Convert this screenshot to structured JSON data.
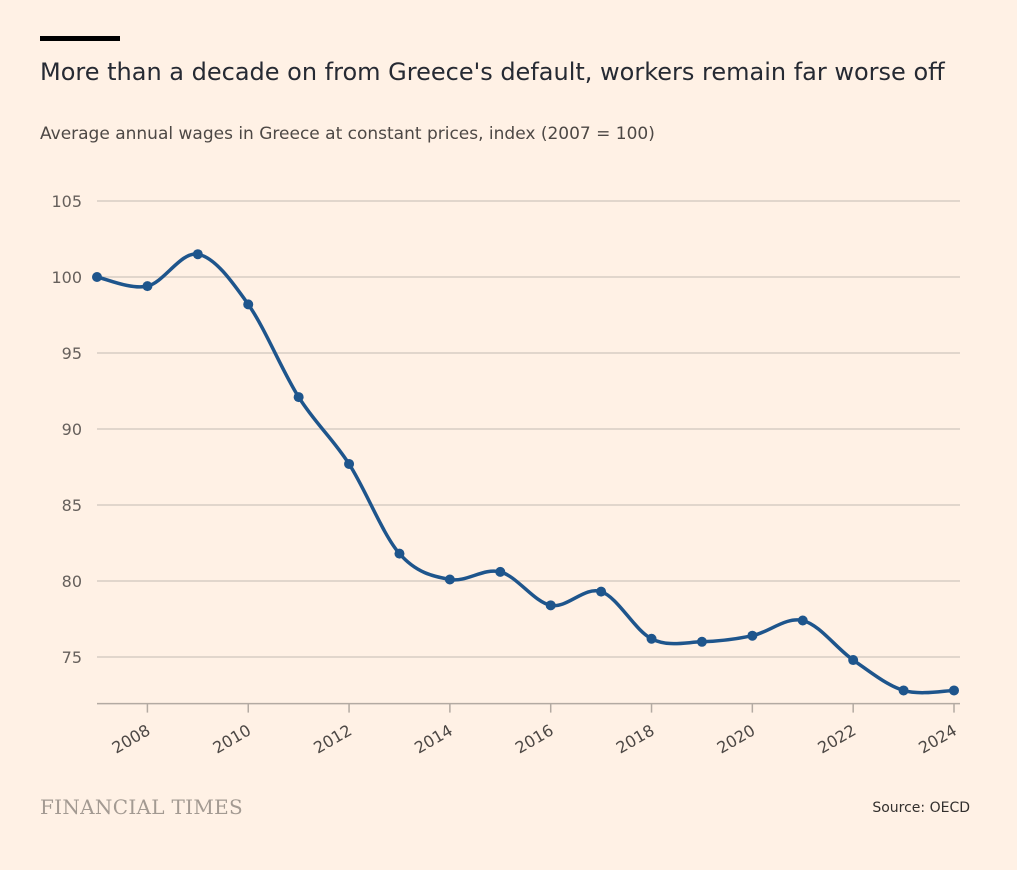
{
  "header": {
    "title": "More than a decade on from Greece's default, workers remain far worse off",
    "subtitle": "Average annual wages in Greece at constant prices, index (2007 = 100)"
  },
  "footer": {
    "logo": "FINANCIAL TIMES",
    "source": "Source: OECD"
  },
  "chart_data": {
    "type": "line",
    "title": "More than a decade on from Greece's default, workers remain far worse off",
    "subtitle": "Average annual wages in Greece at constant prices, index (2007 = 100)",
    "xlabel": "",
    "ylabel": "",
    "x": [
      2007,
      2008,
      2009,
      2010,
      2011,
      2012,
      2013,
      2014,
      2015,
      2016,
      2017,
      2018,
      2019,
      2020,
      2021,
      2022,
      2023,
      2024
    ],
    "series": [
      {
        "values": [
          100,
          99.4,
          101.5,
          98.2,
          92.1,
          87.7,
          81.8,
          80.1,
          80.6,
          78.4,
          79.3,
          76.2,
          76.0,
          76.4,
          77.4,
          74.8,
          72.8,
          72.8
        ]
      }
    ],
    "xlim": [
      2007,
      2024
    ],
    "ylim": [
      72,
      105
    ],
    "yticks": [
      75,
      80,
      85,
      90,
      95,
      100,
      105
    ],
    "xticks": [
      2008,
      2010,
      2012,
      2014,
      2016,
      2018,
      2020,
      2022,
      2024
    ],
    "grid": true,
    "line_color": "#1e558c",
    "grid_color": "#d7cdc3"
  }
}
